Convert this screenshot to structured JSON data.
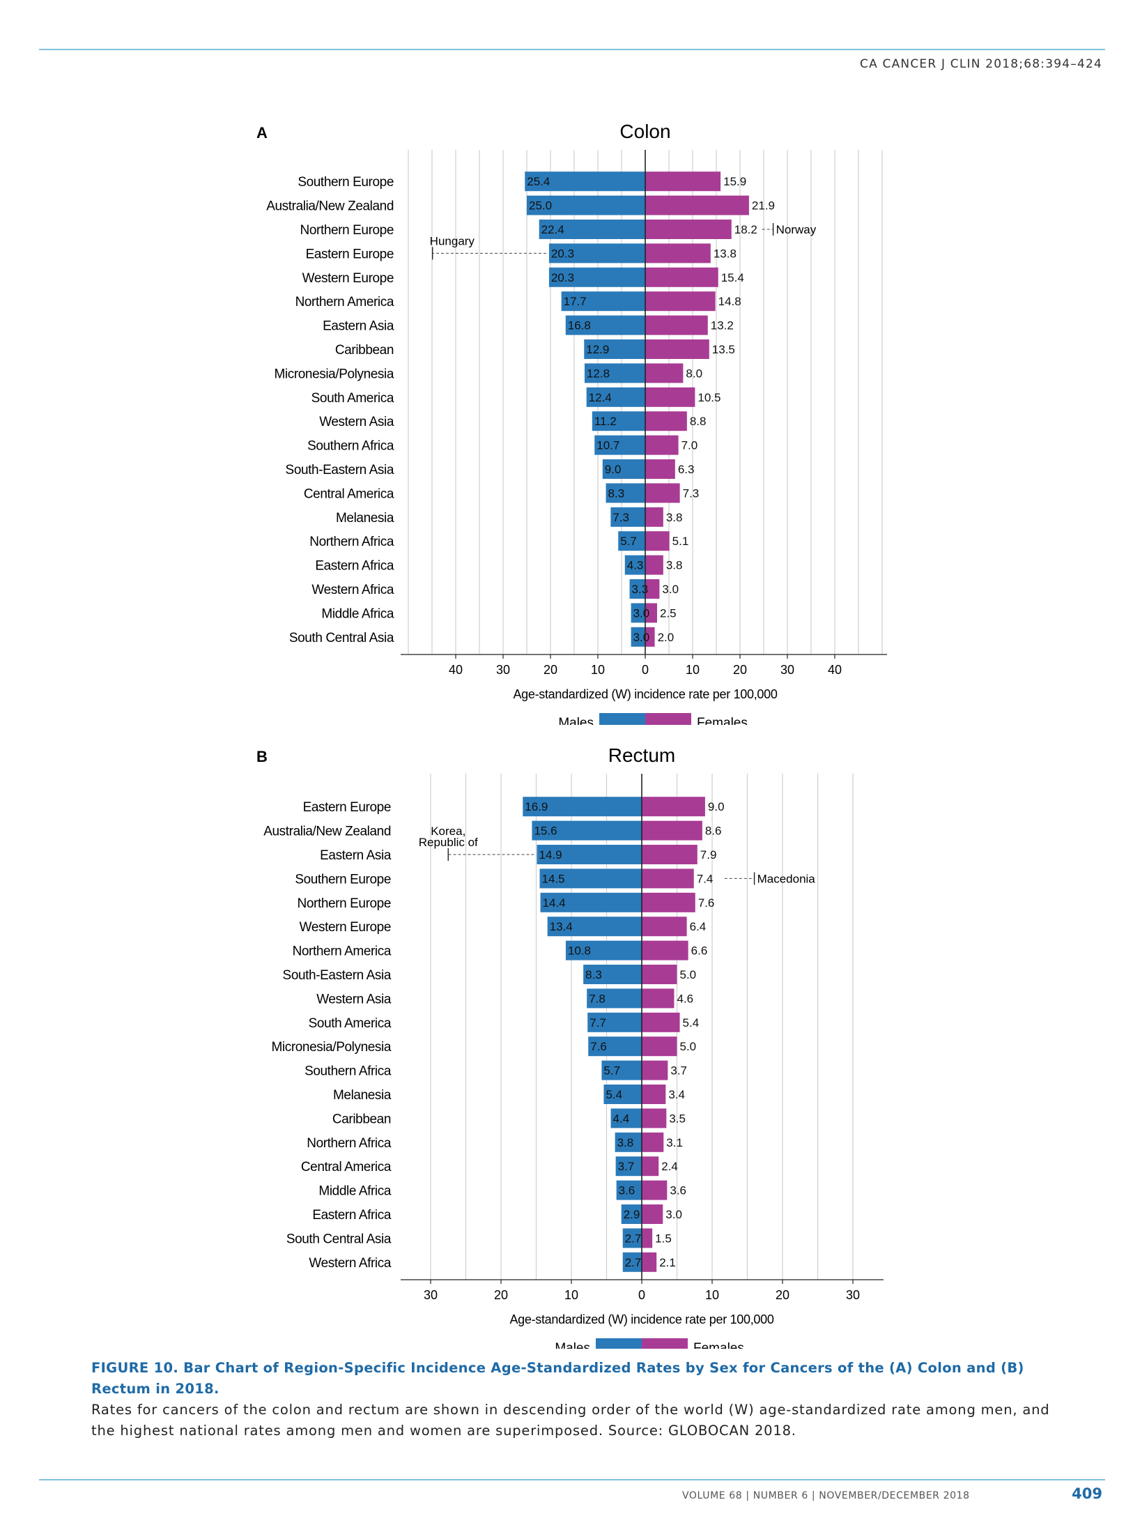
{
  "header": {
    "journal_ref": "CA CANCER J CLIN 2018;68:394–424"
  },
  "chart_data": [
    {
      "panel": "A",
      "type": "bar",
      "orientation": "horizontal-butterfly",
      "title": "Colon",
      "xlabel": "Age-standardized (W) incidence rate per 100,000",
      "xlim": [
        0,
        50
      ],
      "xticks": [
        40,
        30,
        20,
        10,
        0,
        10,
        20,
        30,
        40
      ],
      "grid": true,
      "legend": {
        "position": "bottom-center",
        "entries": [
          "Males",
          "Females"
        ]
      },
      "categories": [
        "Southern Europe",
        "Australia/New Zealand",
        "Northern Europe",
        "Eastern Europe",
        "Western Europe",
        "Northern America",
        "Eastern Asia",
        "Caribbean",
        "Micronesia/Polynesia",
        "South America",
        "Western Asia",
        "Southern Africa",
        "South-Eastern Asia",
        "Central America",
        "Melanesia",
        "Northern Africa",
        "Eastern Africa",
        "Western Africa",
        "Middle Africa",
        "South Central Asia"
      ],
      "series": [
        {
          "name": "Males",
          "color": "#2a7ab9",
          "values": [
            25.4,
            25.0,
            22.4,
            20.3,
            20.3,
            17.7,
            16.8,
            12.9,
            12.8,
            12.4,
            11.2,
            10.7,
            9.0,
            8.3,
            7.3,
            5.7,
            4.3,
            3.3,
            3.0,
            3.0
          ]
        },
        {
          "name": "Females",
          "color": "#a83c94",
          "values": [
            15.9,
            21.9,
            18.2,
            13.8,
            15.4,
            14.8,
            13.2,
            13.5,
            8.0,
            10.5,
            8.8,
            7.0,
            6.3,
            7.3,
            3.8,
            5.1,
            3.8,
            3.0,
            2.5,
            2.0
          ]
        }
      ],
      "value_labels": {
        "males": [
          "25.4",
          "25.0",
          "22.4",
          "20.3",
          "20.3",
          "17.7",
          "16.8",
          "12.9",
          "12.8",
          "12.4",
          "11.2",
          "10.7",
          "9.0",
          "8.3",
          "7.3",
          "5.7",
          "4.3",
          "3.3",
          "3.0",
          "3.0"
        ],
        "females": [
          "15.9",
          "21.9",
          "18.2",
          "13.8",
          "15.4",
          "14.8",
          "13.2",
          "13.5",
          "8.0",
          "10.5",
          "8.8",
          "7.0",
          "6.3",
          "7.3",
          "3.8",
          "5.1",
          "3.8",
          "3.0",
          "2.5",
          "2.0"
        ]
      },
      "annotations": [
        {
          "label": "Hungary",
          "side": "male",
          "row": 3,
          "value": 44.9
        },
        {
          "label": "Norway",
          "side": "female",
          "row": 2,
          "value": 27.0
        }
      ]
    },
    {
      "panel": "B",
      "type": "bar",
      "orientation": "horizontal-butterfly",
      "title": "Rectum",
      "xlabel": "Age-standardized (W) incidence rate per 100,000",
      "xlim": [
        0,
        35
      ],
      "xticks": [
        30,
        20,
        10,
        0,
        10,
        20,
        30
      ],
      "grid": true,
      "legend": {
        "position": "bottom-center",
        "entries": [
          "Males",
          "Females"
        ]
      },
      "categories": [
        "Eastern Europe",
        "Australia/New Zealand",
        "Eastern Asia",
        "Southern Europe",
        "Northern Europe",
        "Western Europe",
        "Northern America",
        "South-Eastern Asia",
        "Western Asia",
        "South America",
        "Micronesia/Polynesia",
        "Southern Africa",
        "Melanesia",
        "Caribbean",
        "Northern Africa",
        "Central America",
        "Middle Africa",
        "Eastern Africa",
        "South Central Asia",
        "Western Africa"
      ],
      "series": [
        {
          "name": "Males",
          "color": "#2a7ab9",
          "values": [
            16.9,
            15.6,
            14.9,
            14.5,
            14.4,
            13.4,
            10.8,
            8.3,
            7.8,
            7.7,
            7.6,
            5.7,
            5.4,
            4.4,
            3.8,
            3.7,
            3.6,
            2.9,
            2.7,
            2.7
          ]
        },
        {
          "name": "Females",
          "color": "#a83c94",
          "values": [
            9.0,
            8.6,
            7.9,
            7.4,
            7.6,
            6.4,
            6.6,
            5.0,
            4.6,
            5.4,
            5.0,
            3.7,
            3.4,
            3.5,
            3.1,
            2.4,
            3.6,
            3.0,
            1.5,
            2.1
          ]
        }
      ],
      "value_labels": {
        "males": [
          "16.9",
          "15.6",
          "14.9",
          "14.5",
          "14.4",
          "13.4",
          "10.8",
          "8.3",
          "7.8",
          "7.7",
          "7.6",
          "5.7",
          "5.4",
          "4.4",
          "3.8",
          "3.7",
          "3.6",
          "2.9",
          "2.7",
          "2.7"
        ],
        "females": [
          "9.0",
          "8.6",
          "7.9",
          "7.4",
          "7.6",
          "6.4",
          "6.6",
          "5.0",
          "4.6",
          "5.4",
          "5.0",
          "3.7",
          "3.4",
          "3.5",
          "3.1",
          "2.4",
          "3.6",
          "3.0",
          "1.5",
          "2.1"
        ]
      },
      "annotations": [
        {
          "label": "Korea,\nRepublic of",
          "side": "male",
          "row": 2,
          "value": 27.5
        },
        {
          "label": "Macedonia",
          "side": "female",
          "row": 3,
          "value": 16.0
        }
      ]
    }
  ],
  "caption": {
    "title": "FIGURE 10. Bar Chart of Region-Specific Incidence Age-Standardized Rates by Sex for Cancers of the (A) Colon and (B) Rectum in 2018.",
    "body": "Rates for cancers of the colon and rectum are shown in descending order of the world (W) age-standardized rate among men, and the highest national rates among men and women are superimposed. Source: GLOBOCAN 2018."
  },
  "footer": {
    "text": "VOLUME 68 | NUMBER 6 | NOVEMBER/DECEMBER 2018",
    "page_number": "409"
  }
}
